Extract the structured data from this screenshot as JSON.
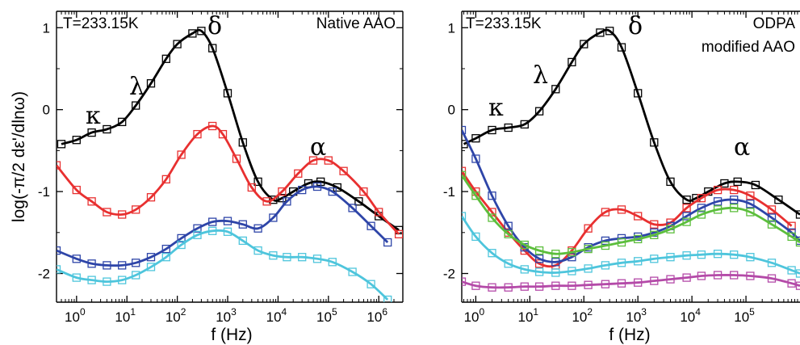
{
  "chart_data": [
    {
      "type": "scatter",
      "title": "",
      "xlabel": "f (Hz)",
      "ylabel": "log(-π/2 dε'/dlnω)",
      "x_scale": "log",
      "xlim": [
        0.4,
        3000000
      ],
      "ylim": [
        -2.35,
        1.2
      ],
      "x_tick_labels": [
        "10",
        "10",
        "10",
        "10",
        "10",
        "10",
        "10"
      ],
      "x_tick_exponents": [
        "0",
        "1",
        "2",
        "3",
        "4",
        "5",
        "6"
      ],
      "x_tick_values": [
        1,
        10,
        100,
        1000,
        10000,
        100000,
        1000000
      ],
      "y_tick_labels": [
        "1",
        "0",
        "-1",
        "-2"
      ],
      "y_tick_values": [
        1,
        0,
        -1,
        -2
      ],
      "annotations": {
        "temperature": "T=233.15K",
        "sample": "Native AAO",
        "kappa": "κ",
        "lambda": "λ",
        "delta": "δ",
        "alpha": "α"
      },
      "series": [
        {
          "color": "#000000",
          "x": [
            0.5,
            1,
            2,
            4,
            8,
            15,
            30,
            60,
            100,
            200,
            300,
            500,
            1000,
            2000,
            4000,
            8000,
            12000,
            20000,
            40000,
            70000,
            150000,
            400000,
            1000000,
            2500000
          ],
          "y": [
            -0.42,
            -0.37,
            -0.28,
            -0.24,
            -0.15,
            0.05,
            0.32,
            0.62,
            0.8,
            0.93,
            0.96,
            0.75,
            0.2,
            -0.4,
            -0.88,
            -1.1,
            -1.08,
            -1.0,
            -0.9,
            -0.88,
            -0.95,
            -1.12,
            -1.3,
            -1.47
          ]
        },
        {
          "color": "#e83030",
          "x": [
            0.4,
            1,
            2,
            4,
            8,
            15,
            30,
            60,
            120,
            250,
            500,
            800,
            1500,
            3000,
            6000,
            12000,
            25000,
            50000,
            100000,
            200000,
            500000,
            1000000,
            2500000
          ],
          "y": [
            -0.68,
            -0.98,
            -1.12,
            -1.25,
            -1.28,
            -1.22,
            -1.07,
            -0.85,
            -0.55,
            -0.3,
            -0.2,
            -0.3,
            -0.6,
            -0.95,
            -1.12,
            -1.0,
            -0.78,
            -0.62,
            -0.62,
            -0.75,
            -1.0,
            -1.25,
            -1.52
          ]
        },
        {
          "color": "#2e45a8",
          "x": [
            0.4,
            1,
            2,
            4,
            8,
            15,
            30,
            60,
            120,
            250,
            500,
            1000,
            2000,
            4000,
            8000,
            15000,
            30000,
            60000,
            120000,
            300000,
            700000,
            1500000
          ],
          "y": [
            -1.72,
            -1.82,
            -1.88,
            -1.9,
            -1.9,
            -1.87,
            -1.8,
            -1.7,
            -1.57,
            -1.45,
            -1.37,
            -1.36,
            -1.4,
            -1.45,
            -1.32,
            -1.12,
            -0.98,
            -0.94,
            -1.0,
            -1.2,
            -1.42,
            -1.62
          ]
        },
        {
          "color": "#4ec5dc",
          "x": [
            0.4,
            1,
            2,
            4,
            8,
            15,
            30,
            60,
            120,
            250,
            500,
            1000,
            2000,
            4000,
            8000,
            15000,
            30000,
            60000,
            120000,
            300000,
            700000,
            1500000
          ],
          "y": [
            -1.95,
            -2.05,
            -2.08,
            -2.1,
            -2.08,
            -2.02,
            -1.92,
            -1.8,
            -1.65,
            -1.53,
            -1.48,
            -1.49,
            -1.6,
            -1.72,
            -1.78,
            -1.8,
            -1.8,
            -1.82,
            -1.86,
            -1.98,
            -2.13,
            -2.32
          ]
        }
      ]
    },
    {
      "type": "scatter",
      "title": "",
      "xlabel": "f (Hz)",
      "ylabel": "",
      "x_scale": "log",
      "xlim": [
        0.55,
        1000000
      ],
      "ylim": [
        -2.35,
        1.2
      ],
      "x_tick_labels": [
        "10",
        "10",
        "10",
        "10",
        "10",
        "10"
      ],
      "x_tick_exponents": [
        "0",
        "1",
        "2",
        "3",
        "4",
        "5"
      ],
      "x_tick_values": [
        1,
        10,
        100,
        1000,
        10000,
        100000
      ],
      "y_tick_labels": [
        "1",
        "0",
        "-1",
        "-2"
      ],
      "y_tick_values": [
        1,
        0,
        -1,
        -2
      ],
      "annotations": {
        "temperature": "T=233.15K",
        "sample_line1": "ODPA",
        "sample_line2": "modified AAO",
        "kappa": "κ",
        "lambda": "λ",
        "delta": "δ",
        "alpha": "α"
      },
      "series": [
        {
          "color": "#000000",
          "x": [
            0.6,
            1,
            2,
            4,
            8,
            15,
            30,
            60,
            100,
            200,
            300,
            500,
            1000,
            2000,
            4000,
            8000,
            12000,
            20000,
            40000,
            70000,
            150000,
            400000,
            1000000
          ],
          "y": [
            -0.42,
            -0.35,
            -0.25,
            -0.22,
            -0.18,
            -0.02,
            0.25,
            0.58,
            0.8,
            0.94,
            0.96,
            0.76,
            0.2,
            -0.4,
            -0.88,
            -1.1,
            -1.08,
            -1.0,
            -0.9,
            -0.88,
            -0.92,
            -1.1,
            -1.28
          ]
        },
        {
          "color": "#e83030",
          "x": [
            0.55,
            1,
            2,
            4,
            8,
            15,
            30,
            60,
            120,
            250,
            500,
            1000,
            2000,
            4000,
            8000,
            15000,
            30000,
            60000,
            120000,
            300000,
            700000
          ],
          "y": [
            -0.75,
            -1.0,
            -1.25,
            -1.5,
            -1.72,
            -1.88,
            -1.9,
            -1.72,
            -1.45,
            -1.25,
            -1.22,
            -1.3,
            -1.4,
            -1.38,
            -1.2,
            -1.08,
            -0.98,
            -0.98,
            -1.05,
            -1.22,
            -1.42
          ]
        },
        {
          "color": "#2e45a8",
          "x": [
            0.55,
            1,
            2,
            4,
            8,
            15,
            30,
            60,
            120,
            250,
            500,
            1000,
            2000,
            4000,
            8000,
            15000,
            30000,
            60000,
            120000,
            300000,
            700000,
            1000000
          ],
          "y": [
            -0.25,
            -0.6,
            -1.05,
            -1.42,
            -1.68,
            -1.82,
            -1.86,
            -1.8,
            -1.68,
            -1.6,
            -1.57,
            -1.55,
            -1.5,
            -1.42,
            -1.3,
            -1.2,
            -1.12,
            -1.1,
            -1.15,
            -1.32,
            -1.5,
            -1.6
          ]
        },
        {
          "color": "#5cbe3c",
          "x": [
            0.55,
            1,
            2,
            4,
            8,
            15,
            30,
            60,
            120,
            250,
            500,
            1000,
            2000,
            4000,
            8000,
            15000,
            30000,
            60000,
            120000,
            300000,
            700000,
            1000000
          ],
          "y": [
            -0.8,
            -1.05,
            -1.32,
            -1.52,
            -1.65,
            -1.72,
            -1.76,
            -1.74,
            -1.7,
            -1.66,
            -1.62,
            -1.58,
            -1.53,
            -1.46,
            -1.37,
            -1.28,
            -1.22,
            -1.2,
            -1.25,
            -1.4,
            -1.55,
            -1.62
          ]
        },
        {
          "color": "#4ec5dc",
          "x": [
            0.55,
            1,
            2,
            4,
            8,
            15,
            30,
            60,
            120,
            250,
            500,
            1000,
            2000,
            4000,
            8000,
            15000,
            30000,
            60000,
            120000,
            300000,
            700000,
            1000000
          ],
          "y": [
            -1.3,
            -1.55,
            -1.75,
            -1.88,
            -1.95,
            -1.98,
            -1.99,
            -1.97,
            -1.94,
            -1.9,
            -1.87,
            -1.85,
            -1.82,
            -1.8,
            -1.78,
            -1.77,
            -1.76,
            -1.77,
            -1.8,
            -1.87,
            -1.96,
            -2.0
          ]
        },
        {
          "color": "#b44aa8",
          "x": [
            0.55,
            1,
            2,
            4,
            8,
            15,
            30,
            60,
            120,
            250,
            500,
            1000,
            2000,
            4000,
            8000,
            15000,
            30000,
            60000,
            120000,
            300000,
            700000,
            1000000
          ],
          "y": [
            -2.1,
            -2.15,
            -2.17,
            -2.17,
            -2.16,
            -2.16,
            -2.15,
            -2.15,
            -2.14,
            -2.13,
            -2.12,
            -2.11,
            -2.09,
            -2.07,
            -2.05,
            -2.03,
            -2.02,
            -2.02,
            -2.03,
            -2.06,
            -2.12,
            -2.15
          ]
        }
      ]
    }
  ]
}
